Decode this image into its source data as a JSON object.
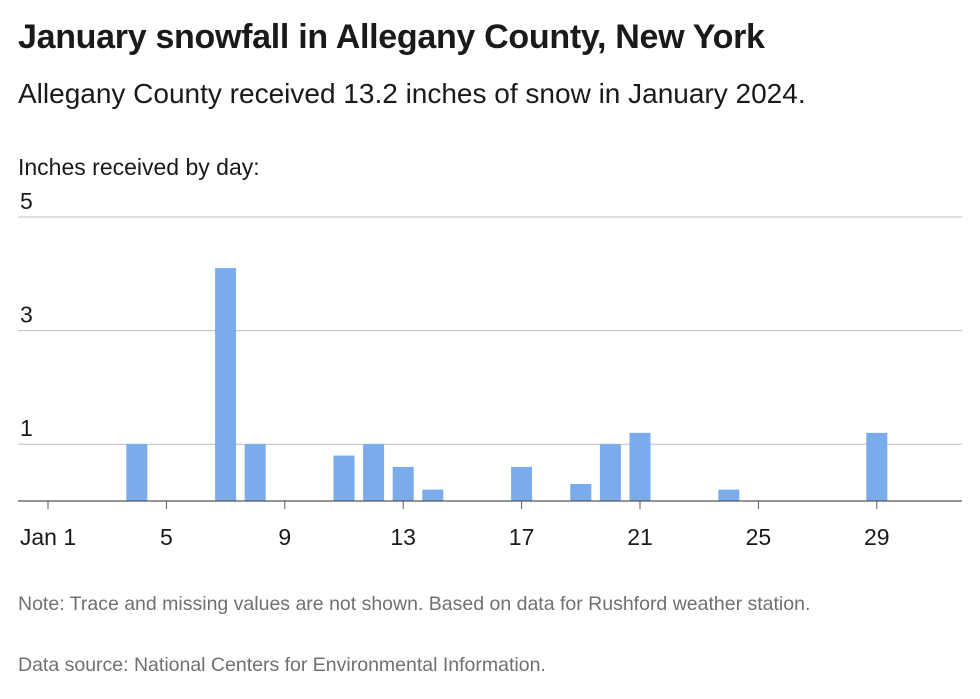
{
  "title": "January snowfall in Allegany County, New York",
  "subtitle": "Allegany County received 13.2 inches of snow in January 2024.",
  "note": "Note: Trace and missing values are not shown. Based on data for Rushford weather station.",
  "source": "Data source: National Centers for Environmental Information.",
  "colors": {
    "bar": "#7aabea",
    "grid": "#bdbdbd",
    "axis": "#555555"
  },
  "chart_data": {
    "type": "bar",
    "ylabel": "Inches received by day:",
    "ylim": [
      0,
      5
    ],
    "yticks": [
      1,
      3,
      5
    ],
    "xlim": [
      1,
      31
    ],
    "xticks": [
      {
        "value": 1,
        "label": "Jan 1"
      },
      {
        "value": 5,
        "label": "5"
      },
      {
        "value": 9,
        "label": "9"
      },
      {
        "value": 13,
        "label": "13"
      },
      {
        "value": 17,
        "label": "17"
      },
      {
        "value": 21,
        "label": "21"
      },
      {
        "value": 25,
        "label": "25"
      },
      {
        "value": 29,
        "label": "29"
      }
    ],
    "grid": true,
    "points": [
      {
        "day": 4,
        "value": 1.0
      },
      {
        "day": 7,
        "value": 4.1
      },
      {
        "day": 8,
        "value": 1.0
      },
      {
        "day": 11,
        "value": 0.8
      },
      {
        "day": 12,
        "value": 1.0
      },
      {
        "day": 13,
        "value": 0.6
      },
      {
        "day": 14,
        "value": 0.2
      },
      {
        "day": 17,
        "value": 0.6
      },
      {
        "day": 19,
        "value": 0.3
      },
      {
        "day": 20,
        "value": 1.0
      },
      {
        "day": 21,
        "value": 1.2
      },
      {
        "day": 24,
        "value": 0.2
      },
      {
        "day": 29,
        "value": 1.2
      }
    ]
  }
}
